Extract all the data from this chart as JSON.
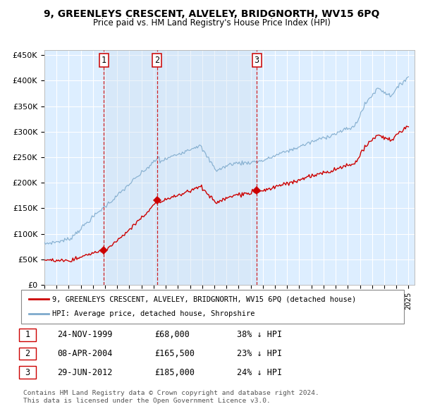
{
  "title": "9, GREENLEYS CRESCENT, ALVELEY, BRIDGNORTH, WV15 6PQ",
  "subtitle": "Price paid vs. HM Land Registry's House Price Index (HPI)",
  "plot_bg_color": "#ddeeff",
  "grid_color": "#ffffff",
  "ylabel_ticks": [
    "£0",
    "£50K",
    "£100K",
    "£150K",
    "£200K",
    "£250K",
    "£300K",
    "£350K",
    "£400K",
    "£450K"
  ],
  "ytick_values": [
    0,
    50000,
    100000,
    150000,
    200000,
    250000,
    300000,
    350000,
    400000,
    450000
  ],
  "ylim": [
    0,
    460000
  ],
  "xlim_start": 1995.0,
  "xlim_end": 2025.5,
  "transactions": [
    {
      "label": "1",
      "date": 1999.9,
      "price": 68000,
      "date_str": "24-NOV-1999",
      "price_str": "£68,000",
      "pct": "38% ↓ HPI"
    },
    {
      "label": "2",
      "date": 2004.27,
      "price": 165500,
      "date_str": "08-APR-2004",
      "price_str": "£165,500",
      "pct": "23% ↓ HPI"
    },
    {
      "label": "3",
      "date": 2012.5,
      "price": 185000,
      "date_str": "29-JUN-2012",
      "price_str": "£185,000",
      "pct": "24% ↓ HPI"
    }
  ],
  "red_line_color": "#cc0000",
  "blue_line_color": "#7eaacc",
  "marker_color": "#cc0000",
  "dashed_line_color": "#cc0000",
  "legend_label_red": "9, GREENLEYS CRESCENT, ALVELEY, BRIDGNORTH, WV15 6PQ (detached house)",
  "legend_label_blue": "HPI: Average price, detached house, Shropshire",
  "footer_text": "Contains HM Land Registry data © Crown copyright and database right 2024.\nThis data is licensed under the Open Government Licence v3.0."
}
